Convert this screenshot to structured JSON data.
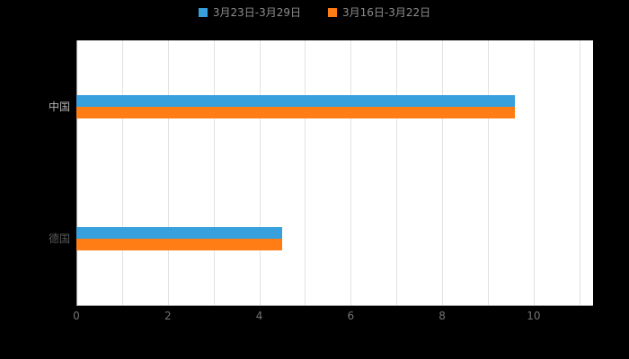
{
  "colors": {
    "outer_background": "#000000",
    "plot_background": "#ffffff",
    "gridline": "#e2e2e2",
    "axis_line": "#999999",
    "tick_label": "#737373",
    "legend_label": "#8c8c8c",
    "series_blue": "#38a0dc",
    "series_orange": "#ff7d14",
    "category_label_colors": [
      "#b3b3b3",
      "#595959"
    ]
  },
  "legend": {
    "items": [
      {
        "label": "3月23日-3月29日",
        "color": "#38a0dc"
      },
      {
        "label": "3月16日-3月22日",
        "color": "#ff7d14"
      }
    ]
  },
  "chart_data": {
    "type": "bar",
    "orientation": "horizontal",
    "title": "",
    "xlabel": "",
    "ylabel": "",
    "categories": [
      "中国",
      "德国"
    ],
    "series": [
      {
        "name": "3月23日-3月29日",
        "color": "#38a0dc",
        "values": [
          9.6,
          4.5
        ]
      },
      {
        "name": "3月16日-3月22日",
        "color": "#ff7d14",
        "values": [
          9.6,
          4.5
        ]
      }
    ],
    "xlim": [
      0,
      11.3
    ],
    "x_ticks": [
      0,
      2,
      4,
      6,
      8,
      10
    ],
    "gridline_step": 1,
    "grid": true,
    "legend_position": "top"
  }
}
